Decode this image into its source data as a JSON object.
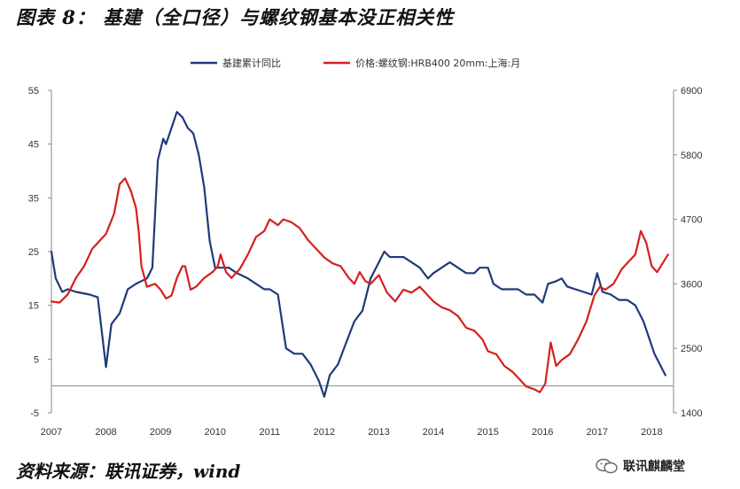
{
  "figure": {
    "title": "图表 8：  基建（全口径）与螺纹钢基本没正相关性",
    "source": "资料来源：联讯证券，wind",
    "watermark": "联讯麒麟堂"
  },
  "colors": {
    "series1": "#1f3a7a",
    "series2": "#d42020",
    "axis": "#888888"
  },
  "chart_data": {
    "type": "line",
    "title": "图表 8：  基建（全口径）与螺纹钢基本没正相关性",
    "x_ticks": [
      "2007",
      "2008",
      "2009",
      "2010",
      "2011",
      "2012",
      "2013",
      "2014",
      "2015",
      "2016",
      "2017",
      "2018"
    ],
    "x_range": [
      2007.0,
      2018.4
    ],
    "left_axis": {
      "min": -5,
      "max": 55,
      "ticks": [
        "55",
        "45",
        "35",
        "25",
        "15",
        "5",
        "-5"
      ],
      "tick_values": [
        55,
        45,
        35,
        25,
        15,
        5,
        -5
      ]
    },
    "right_axis": {
      "min": 1400,
      "max": 6900,
      "ticks": [
        "6900",
        "5800",
        "4700",
        "3600",
        "2500",
        "1400"
      ],
      "tick_values": [
        6900,
        5800,
        4700,
        3600,
        2500,
        1400
      ]
    },
    "series": [
      {
        "name": "基建累计同比",
        "axis": "left",
        "points": [
          [
            2007.0,
            25
          ],
          [
            2007.08,
            20
          ],
          [
            2007.2,
            17.5
          ],
          [
            2007.3,
            18
          ],
          [
            2007.45,
            17.5
          ],
          [
            2007.7,
            17
          ],
          [
            2007.85,
            16.5
          ],
          [
            2008.0,
            3.5
          ],
          [
            2008.1,
            11.5
          ],
          [
            2008.25,
            13.5
          ],
          [
            2008.4,
            18
          ],
          [
            2008.55,
            19
          ],
          [
            2008.75,
            20
          ],
          [
            2008.85,
            22
          ],
          [
            2008.95,
            42
          ],
          [
            2009.05,
            46
          ],
          [
            2009.1,
            45
          ],
          [
            2009.2,
            48
          ],
          [
            2009.3,
            51
          ],
          [
            2009.4,
            50
          ],
          [
            2009.5,
            48
          ],
          [
            2009.6,
            47
          ],
          [
            2009.7,
            43
          ],
          [
            2009.8,
            37
          ],
          [
            2009.9,
            27
          ],
          [
            2010.0,
            22
          ],
          [
            2010.1,
            22
          ],
          [
            2010.25,
            22
          ],
          [
            2010.4,
            21
          ],
          [
            2010.6,
            20
          ],
          [
            2010.75,
            19
          ],
          [
            2010.9,
            18
          ],
          [
            2011.0,
            18
          ],
          [
            2011.15,
            17
          ],
          [
            2011.3,
            7
          ],
          [
            2011.45,
            6
          ],
          [
            2011.6,
            6
          ],
          [
            2011.75,
            4
          ],
          [
            2011.9,
            1
          ],
          [
            2012.0,
            -2
          ],
          [
            2012.1,
            2
          ],
          [
            2012.25,
            4
          ],
          [
            2012.4,
            8
          ],
          [
            2012.55,
            12
          ],
          [
            2012.7,
            14
          ],
          [
            2012.85,
            20
          ],
          [
            2013.0,
            23
          ],
          [
            2013.1,
            25
          ],
          [
            2013.2,
            24
          ],
          [
            2013.3,
            24
          ],
          [
            2013.45,
            24
          ],
          [
            2013.6,
            23
          ],
          [
            2013.75,
            22
          ],
          [
            2013.9,
            20
          ],
          [
            2014.0,
            21
          ],
          [
            2014.15,
            22
          ],
          [
            2014.3,
            23
          ],
          [
            2014.45,
            22
          ],
          [
            2014.6,
            21
          ],
          [
            2014.75,
            21
          ],
          [
            2014.85,
            22
          ],
          [
            2015.0,
            22
          ],
          [
            2015.1,
            19
          ],
          [
            2015.25,
            18
          ],
          [
            2015.4,
            18
          ],
          [
            2015.55,
            18
          ],
          [
            2015.7,
            17
          ],
          [
            2015.85,
            17
          ],
          [
            2016.0,
            15.5
          ],
          [
            2016.1,
            19
          ],
          [
            2016.25,
            19.5
          ],
          [
            2016.35,
            20
          ],
          [
            2016.45,
            18.5
          ],
          [
            2016.6,
            18
          ],
          [
            2016.75,
            17.5
          ],
          [
            2016.9,
            17
          ],
          [
            2017.0,
            21
          ],
          [
            2017.1,
            17.5
          ],
          [
            2017.25,
            17
          ],
          [
            2017.4,
            16
          ],
          [
            2017.55,
            16
          ],
          [
            2017.7,
            15
          ],
          [
            2017.85,
            12
          ],
          [
            2017.95,
            9
          ],
          [
            2018.05,
            6
          ],
          [
            2018.15,
            4
          ],
          [
            2018.25,
            2
          ]
        ]
      },
      {
        "name": "价格:螺纹钢:HRB400 20mm:上海:月",
        "axis": "right",
        "points": [
          [
            2007.0,
            3300
          ],
          [
            2007.15,
            3280
          ],
          [
            2007.3,
            3420
          ],
          [
            2007.45,
            3700
          ],
          [
            2007.6,
            3900
          ],
          [
            2007.75,
            4200
          ],
          [
            2007.9,
            4350
          ],
          [
            2008.0,
            4450
          ],
          [
            2008.15,
            4800
          ],
          [
            2008.25,
            5300
          ],
          [
            2008.35,
            5400
          ],
          [
            2008.45,
            5200
          ],
          [
            2008.55,
            4900
          ],
          [
            2008.6,
            4500
          ],
          [
            2008.65,
            3900
          ],
          [
            2008.75,
            3550
          ],
          [
            2008.9,
            3600
          ],
          [
            2009.0,
            3500
          ],
          [
            2009.1,
            3350
          ],
          [
            2009.2,
            3400
          ],
          [
            2009.3,
            3700
          ],
          [
            2009.4,
            3900
          ],
          [
            2009.45,
            3900
          ],
          [
            2009.55,
            3500
          ],
          [
            2009.65,
            3550
          ],
          [
            2009.8,
            3700
          ],
          [
            2009.95,
            3800
          ],
          [
            2010.05,
            3900
          ],
          [
            2010.1,
            4100
          ],
          [
            2010.2,
            3800
          ],
          [
            2010.3,
            3700
          ],
          [
            2010.45,
            3850
          ],
          [
            2010.6,
            4100
          ],
          [
            2010.75,
            4400
          ],
          [
            2010.9,
            4500
          ],
          [
            2011.0,
            4700
          ],
          [
            2011.15,
            4600
          ],
          [
            2011.25,
            4700
          ],
          [
            2011.4,
            4650
          ],
          [
            2011.55,
            4550
          ],
          [
            2011.7,
            4350
          ],
          [
            2011.85,
            4200
          ],
          [
            2012.0,
            4050
          ],
          [
            2012.15,
            3950
          ],
          [
            2012.3,
            3900
          ],
          [
            2012.45,
            3700
          ],
          [
            2012.55,
            3600
          ],
          [
            2012.65,
            3800
          ],
          [
            2012.75,
            3650
          ],
          [
            2012.85,
            3600
          ],
          [
            2013.0,
            3750
          ],
          [
            2013.15,
            3450
          ],
          [
            2013.3,
            3300
          ],
          [
            2013.45,
            3500
          ],
          [
            2013.6,
            3450
          ],
          [
            2013.75,
            3550
          ],
          [
            2013.9,
            3400
          ],
          [
            2014.0,
            3300
          ],
          [
            2014.15,
            3200
          ],
          [
            2014.3,
            3150
          ],
          [
            2014.45,
            3050
          ],
          [
            2014.6,
            2850
          ],
          [
            2014.75,
            2800
          ],
          [
            2014.9,
            2650
          ],
          [
            2015.0,
            2450
          ],
          [
            2015.15,
            2400
          ],
          [
            2015.3,
            2200
          ],
          [
            2015.45,
            2100
          ],
          [
            2015.55,
            2000
          ],
          [
            2015.7,
            1850
          ],
          [
            2015.85,
            1800
          ],
          [
            2015.95,
            1750
          ],
          [
            2016.05,
            1900
          ],
          [
            2016.15,
            2600
          ],
          [
            2016.25,
            2200
          ],
          [
            2016.35,
            2300
          ],
          [
            2016.5,
            2400
          ],
          [
            2016.65,
            2650
          ],
          [
            2016.8,
            2950
          ],
          [
            2016.95,
            3400
          ],
          [
            2017.05,
            3550
          ],
          [
            2017.15,
            3500
          ],
          [
            2017.3,
            3600
          ],
          [
            2017.45,
            3850
          ],
          [
            2017.6,
            4000
          ],
          [
            2017.7,
            4100
          ],
          [
            2017.8,
            4500
          ],
          [
            2017.9,
            4300
          ],
          [
            2018.0,
            3900
          ],
          [
            2018.1,
            3800
          ],
          [
            2018.2,
            3950
          ],
          [
            2018.3,
            4100
          ]
        ]
      }
    ]
  }
}
